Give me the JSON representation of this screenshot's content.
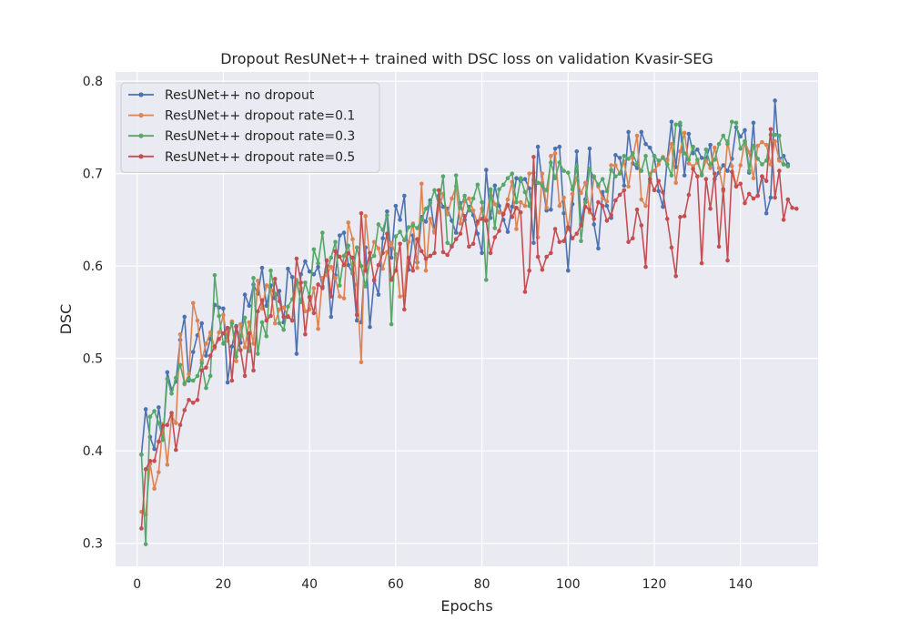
{
  "chart_data": {
    "type": "line",
    "title": "Dropout ResUNet++ trained with DSC loss on validation Kvasir-SEG",
    "xlabel": "Epochs",
    "ylabel": "DSC",
    "xlim": [
      -5,
      158
    ],
    "ylim": [
      0.275,
      0.81
    ],
    "xticks": [
      0,
      20,
      40,
      60,
      80,
      100,
      120,
      140
    ],
    "yticks": [
      0.3,
      0.4,
      0.5,
      0.6,
      0.7,
      0.8
    ],
    "grid": true,
    "legend_position": "top-left",
    "background": "#eaeaf2",
    "series": [
      {
        "name": "ResUNet++ no dropout",
        "color": "#4c72b0",
        "values": [
          0.396,
          0.445,
          0.415,
          0.402,
          0.447,
          0.412,
          0.485,
          0.466,
          0.475,
          0.52,
          0.545,
          0.476,
          0.507,
          0.525,
          0.538,
          0.503,
          0.521,
          0.558,
          0.555,
          0.554,
          0.474,
          0.513,
          0.535,
          0.517,
          0.569,
          0.557,
          0.58,
          0.57,
          0.598,
          0.557,
          0.579,
          0.565,
          0.573,
          0.539,
          0.597,
          0.588,
          0.505,
          0.591,
          0.605,
          0.594,
          0.591,
          0.599,
          0.578,
          0.606,
          0.545,
          0.59,
          0.633,
          0.636,
          0.601,
          0.592,
          0.541,
          0.539,
          0.62,
          0.534,
          0.585,
          0.569,
          0.63,
          0.659,
          0.609,
          0.665,
          0.65,
          0.676,
          0.596,
          0.633,
          0.604,
          0.653,
          0.648,
          0.671,
          0.638,
          0.676,
          0.664,
          0.662,
          0.649,
          0.636,
          0.668,
          0.65,
          0.664,
          0.655,
          0.635,
          0.614,
          0.704,
          0.652,
          0.687,
          0.665,
          0.65,
          0.637,
          0.664,
          0.695,
          0.692,
          0.694,
          0.684,
          0.625,
          0.729,
          0.69,
          0.66,
          0.661,
          0.727,
          0.729,
          0.657,
          0.595,
          0.667,
          0.724,
          0.646,
          0.672,
          0.727,
          0.645,
          0.619,
          0.68,
          0.665,
          0.652,
          0.72,
          0.717,
          0.687,
          0.745,
          0.711,
          0.706,
          0.745,
          0.732,
          0.728,
          0.719,
          0.681,
          0.664,
          0.715,
          0.756,
          0.707,
          0.752,
          0.698,
          0.743,
          0.722,
          0.726,
          0.717,
          0.716,
          0.731,
          0.694,
          0.701,
          0.709,
          0.703,
          0.716,
          0.75,
          0.74,
          0.747,
          0.701,
          0.755,
          0.676,
          0.697,
          0.657,
          0.674,
          0.779,
          0.716,
          0.719,
          0.71
        ]
      },
      {
        "name": "ResUNet++ dropout rate=0.1",
        "color": "#dd8452",
        "values": [
          0.334,
          0.331,
          0.386,
          0.359,
          0.377,
          0.429,
          0.385,
          0.438,
          0.43,
          0.526,
          0.472,
          0.483,
          0.56,
          0.541,
          0.498,
          0.516,
          0.528,
          0.511,
          0.528,
          0.547,
          0.519,
          0.54,
          0.497,
          0.537,
          0.512,
          0.539,
          0.516,
          0.584,
          0.554,
          0.579,
          0.574,
          0.538,
          0.553,
          0.555,
          0.546,
          0.541,
          0.585,
          0.576,
          0.551,
          0.553,
          0.576,
          0.532,
          0.587,
          0.59,
          0.599,
          0.587,
          0.567,
          0.565,
          0.647,
          0.629,
          0.58,
          0.496,
          0.654,
          0.608,
          0.626,
          0.619,
          0.597,
          0.615,
          0.625,
          0.613,
          0.567,
          0.568,
          0.626,
          0.646,
          0.598,
          0.689,
          0.595,
          0.651,
          0.636,
          0.662,
          0.678,
          0.656,
          0.673,
          0.686,
          0.646,
          0.67,
          0.673,
          0.66,
          0.646,
          0.662,
          0.65,
          0.681,
          0.667,
          0.658,
          0.657,
          0.672,
          0.691,
          0.64,
          0.669,
          0.665,
          0.7,
          0.701,
          0.631,
          0.7,
          0.663,
          0.719,
          0.722,
          0.665,
          0.674,
          0.64,
          0.678,
          0.695,
          0.679,
          0.69,
          0.658,
          0.697,
          0.686,
          0.673,
          0.67,
          0.709,
          0.709,
          0.7,
          0.713,
          0.686,
          0.717,
          0.741,
          0.672,
          0.665,
          0.7,
          0.703,
          0.71,
          0.718,
          0.714,
          0.732,
          0.69,
          0.724,
          0.744,
          0.711,
          0.708,
          0.712,
          0.7,
          0.714,
          0.706,
          0.728,
          0.706,
          0.681,
          0.735,
          0.708,
          0.687,
          0.709,
          0.735,
          0.723,
          0.695,
          0.73,
          0.734,
          0.731,
          0.71,
          0.735,
          0.714,
          0.71,
          0.708
        ]
      },
      {
        "name": "ResUNet++ dropout rate=0.3",
        "color": "#55a868",
        "values": [
          0.396,
          0.299,
          0.437,
          0.443,
          0.43,
          0.412,
          0.478,
          0.462,
          0.479,
          0.493,
          0.473,
          0.478,
          0.476,
          0.481,
          0.495,
          0.468,
          0.481,
          0.59,
          0.546,
          0.516,
          0.525,
          0.538,
          0.502,
          0.524,
          0.544,
          0.508,
          0.587,
          0.505,
          0.539,
          0.524,
          0.595,
          0.57,
          0.538,
          0.531,
          0.556,
          0.564,
          0.583,
          0.561,
          0.582,
          0.567,
          0.618,
          0.603,
          0.636,
          0.594,
          0.609,
          0.626,
          0.579,
          0.611,
          0.622,
          0.593,
          0.62,
          0.6,
          0.578,
          0.607,
          0.611,
          0.645,
          0.639,
          0.655,
          0.537,
          0.632,
          0.637,
          0.628,
          0.642,
          0.644,
          0.641,
          0.65,
          0.662,
          0.668,
          0.682,
          0.666,
          0.697,
          0.625,
          0.622,
          0.698,
          0.663,
          0.676,
          0.66,
          0.673,
          0.688,
          0.669,
          0.585,
          0.683,
          0.641,
          0.683,
          0.688,
          0.695,
          0.7,
          0.669,
          0.695,
          0.68,
          0.665,
          0.693,
          0.69,
          0.687,
          0.682,
          0.712,
          0.695,
          0.712,
          0.703,
          0.701,
          0.683,
          0.708,
          0.627,
          0.669,
          0.705,
          0.696,
          0.688,
          0.694,
          0.681,
          0.704,
          0.697,
          0.7,
          0.719,
          0.716,
          0.722,
          0.71,
          0.703,
          0.719,
          0.691,
          0.719,
          0.714,
          0.717,
          0.71,
          0.698,
          0.753,
          0.755,
          0.722,
          0.715,
          0.729,
          0.715,
          0.698,
          0.726,
          0.71,
          0.715,
          0.732,
          0.741,
          0.732,
          0.756,
          0.755,
          0.727,
          0.735,
          0.703,
          0.73,
          0.716,
          0.71,
          0.714,
          0.742,
          0.742,
          0.741,
          0.71,
          0.708
        ]
      },
      {
        "name": "ResUNet++ dropout rate=0.5",
        "color": "#c44e52",
        "values": [
          0.316,
          0.38,
          0.389,
          0.389,
          0.41,
          0.427,
          0.428,
          0.441,
          0.401,
          0.428,
          0.444,
          0.455,
          0.452,
          0.455,
          0.487,
          0.49,
          0.503,
          0.513,
          0.521,
          0.527,
          0.533,
          0.476,
          0.534,
          0.509,
          0.481,
          0.527,
          0.487,
          0.551,
          0.563,
          0.541,
          0.546,
          0.586,
          0.562,
          0.545,
          0.545,
          0.541,
          0.608,
          0.582,
          0.526,
          0.566,
          0.549,
          0.58,
          0.576,
          0.606,
          0.567,
          0.616,
          0.61,
          0.601,
          0.614,
          0.609,
          0.547,
          0.657,
          0.595,
          0.614,
          0.584,
          0.601,
          0.614,
          0.635,
          0.585,
          0.595,
          0.624,
          0.553,
          0.609,
          0.595,
          0.629,
          0.616,
          0.608,
          0.611,
          0.614,
          0.682,
          0.615,
          0.612,
          0.621,
          0.629,
          0.635,
          0.654,
          0.621,
          0.624,
          0.648,
          0.651,
          0.649,
          0.614,
          0.631,
          0.638,
          0.656,
          0.666,
          0.653,
          0.663,
          0.658,
          0.572,
          0.595,
          0.718,
          0.61,
          0.596,
          0.61,
          0.614,
          0.64,
          0.626,
          0.627,
          0.642,
          0.63,
          0.635,
          0.644,
          0.664,
          0.661,
          0.651,
          0.669,
          0.665,
          0.649,
          0.655,
          0.671,
          0.677,
          0.682,
          0.626,
          0.63,
          0.661,
          0.644,
          0.599,
          0.694,
          0.682,
          0.692,
          0.68,
          0.651,
          0.62,
          0.589,
          0.653,
          0.654,
          0.677,
          0.705,
          0.697,
          0.603,
          0.694,
          0.662,
          0.7,
          0.621,
          0.683,
          0.606,
          0.702,
          0.686,
          0.689,
          0.668,
          0.678,
          0.673,
          0.676,
          0.697,
          0.692,
          0.748,
          0.674,
          0.703,
          0.65,
          0.672,
          0.663,
          0.662
        ]
      }
    ]
  }
}
